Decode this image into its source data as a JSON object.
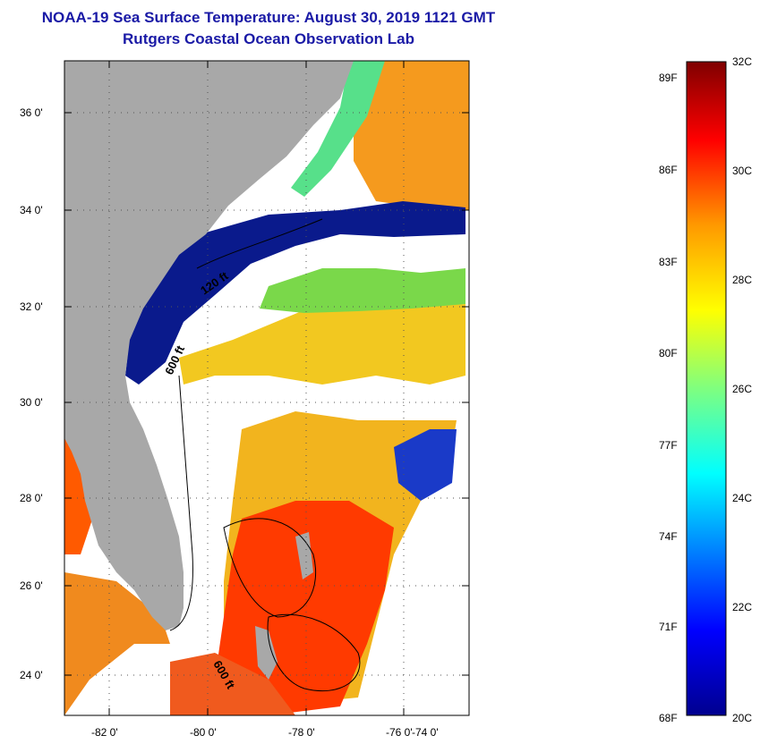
{
  "title": {
    "line1": "NOAA-19 Sea Surface Temperature:  August 30, 2019 1121 GMT",
    "line2": "Rutgers Coastal Ocean Observation Lab"
  },
  "map": {
    "lat_ticks": [
      "36 0'",
      "34 0'",
      "32 0'",
      "30 0'",
      "28 0'",
      "26 0'",
      "24 0'"
    ],
    "lon_ticks": [
      "-82 0'",
      "-80 0'",
      "-78 0'",
      "-76 0'",
      "-74 0'"
    ],
    "contour_labels": [
      "600 ft",
      "120 ft",
      "600 ft"
    ],
    "colors": {
      "land": "#a8a8a8",
      "cold": "#0a1a8c",
      "warm": "#ff2a00",
      "mid": "#f2f21e",
      "cloud": "#ffffff"
    }
  },
  "colorbar": {
    "fahrenheit": [
      "89F",
      "86F",
      "83F",
      "80F",
      "77F",
      "74F",
      "71F",
      "68F"
    ],
    "celsius": [
      "32C",
      "30C",
      "28C",
      "26C",
      "24C",
      "22C",
      "20C"
    ]
  }
}
